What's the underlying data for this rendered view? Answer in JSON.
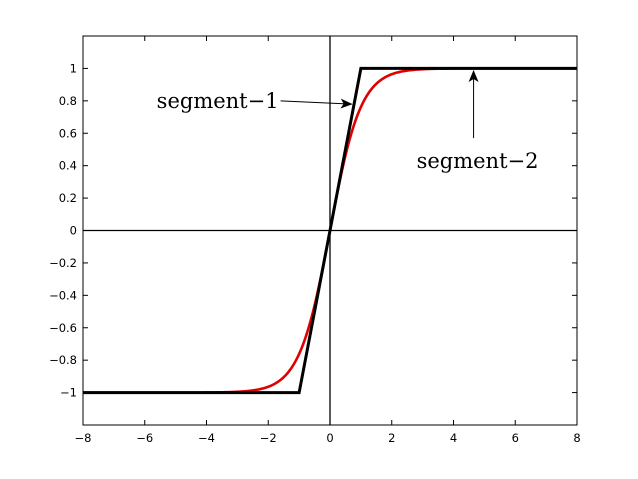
{
  "chart_data": {
    "type": "line",
    "title": "",
    "xlabel": "",
    "ylabel": "",
    "xlim": [
      -8,
      8
    ],
    "ylim": [
      -1.2,
      1.2
    ],
    "xticks": [
      -8,
      -6,
      -4,
      -2,
      0,
      2,
      4,
      6,
      8
    ],
    "yticks": [
      -1,
      -0.8,
      -0.6,
      -0.4,
      -0.2,
      0,
      0.2,
      0.4,
      0.6,
      0.8,
      1
    ],
    "x_tick_labels": [
      "−8",
      "−6",
      "−4",
      "−2",
      "0",
      "2",
      "4",
      "6",
      "8"
    ],
    "y_tick_labels": [
      "−1",
      "−0.8",
      "−0.6",
      "−0.4",
      "−0.2",
      "0",
      "0.2",
      "0.4",
      "0.6",
      "0.8",
      "1"
    ],
    "grid": false,
    "zero_lines": true,
    "series": [
      {
        "function": "tanh",
        "x_min": -8,
        "x_max": 8,
        "color": "#e00000"
      },
      {
        "function": "piecewise-linear",
        "x": [
          -8,
          -1,
          1,
          8
        ],
        "y": [
          -1,
          -1,
          1,
          1
        ],
        "color": "#000000"
      }
    ],
    "annotations": [
      {
        "text": "segment−1",
        "arrow_from": [
          -1.6,
          0.8
        ],
        "arrow_to": [
          0.7,
          0.78
        ]
      },
      {
        "text": "segment−2",
        "arrow_from": [
          4.65,
          0.57
        ],
        "arrow_to": [
          4.65,
          0.99
        ]
      }
    ]
  }
}
